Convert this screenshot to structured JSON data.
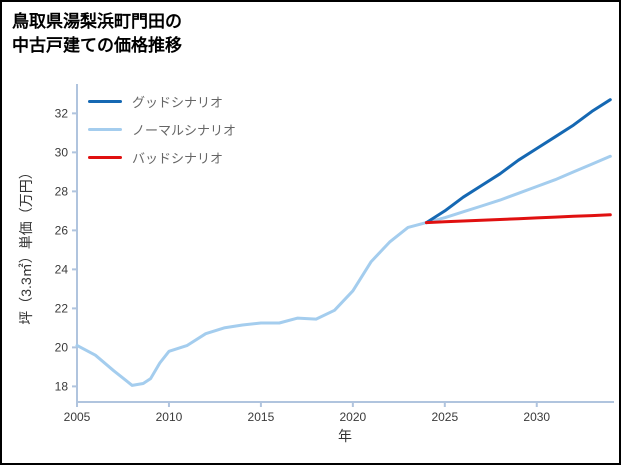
{
  "title": {
    "line1": "鳥取県湯梨浜町門田の",
    "line2": "中古戸建ての価格推移"
  },
  "colors": {
    "axis": "#b0c4de",
    "tick_label": "#3a3a3a",
    "legend_text": "#666666",
    "title": "#000000",
    "background": "#ffffff",
    "border": "#000000",
    "good_scenario": "#1568b3",
    "normal_scenario": "#a4cdee",
    "bad_scenario": "#e01010"
  },
  "chart_data": {
    "type": "line",
    "title": "鳥取県湯梨浜町門田の中古戸建ての価格推移",
    "xlabel": "年",
    "ylabel": "坪（3.3㎡）単価（万円）",
    "xlim": [
      2005,
      2034.2
    ],
    "ylim": [
      17.2,
      33.3
    ],
    "xticks": [
      2005,
      2010,
      2015,
      2020,
      2025,
      2030
    ],
    "yticks": [
      18,
      20,
      22,
      24,
      26,
      28,
      30,
      32
    ],
    "grid": false,
    "legend_position": "upper-left",
    "series": [
      {
        "name": "グッドシナリオ",
        "color": "#1568b3",
        "x": [
          2024,
          2025,
          2026,
          2027,
          2028,
          2029,
          2030,
          2031,
          2032,
          2033,
          2034
        ],
        "y": [
          26.4,
          27.0,
          27.7,
          28.3,
          28.9,
          29.6,
          30.2,
          30.8,
          31.4,
          32.1,
          32.7
        ]
      },
      {
        "name": "ノーマルシナリオ",
        "color": "#a4cdee",
        "x": [
          2005,
          2006,
          2007,
          2008,
          2008.6,
          2009,
          2009.5,
          2010,
          2011,
          2012,
          2013,
          2014,
          2015,
          2016,
          2017,
          2018,
          2019,
          2020,
          2021,
          2022,
          2023,
          2024,
          2025,
          2026,
          2027,
          2028,
          2029,
          2030,
          2031,
          2032,
          2033,
          2034
        ],
        "y": [
          20.1,
          19.6,
          18.8,
          18.05,
          18.15,
          18.4,
          19.2,
          19.8,
          20.1,
          20.7,
          21.0,
          21.15,
          21.25,
          21.25,
          21.5,
          21.45,
          21.9,
          22.9,
          24.4,
          25.4,
          26.15,
          26.4,
          26.65,
          26.95,
          27.25,
          27.55,
          27.9,
          28.25,
          28.6,
          29.0,
          29.4,
          29.8
        ]
      },
      {
        "name": "バッドシナリオ",
        "color": "#e01010",
        "x": [
          2024,
          2025,
          2026,
          2027,
          2028,
          2029,
          2030,
          2031,
          2032,
          2033,
          2034
        ],
        "y": [
          26.4,
          26.44,
          26.48,
          26.52,
          26.56,
          26.6,
          26.64,
          26.68,
          26.72,
          26.76,
          26.8
        ]
      }
    ]
  }
}
